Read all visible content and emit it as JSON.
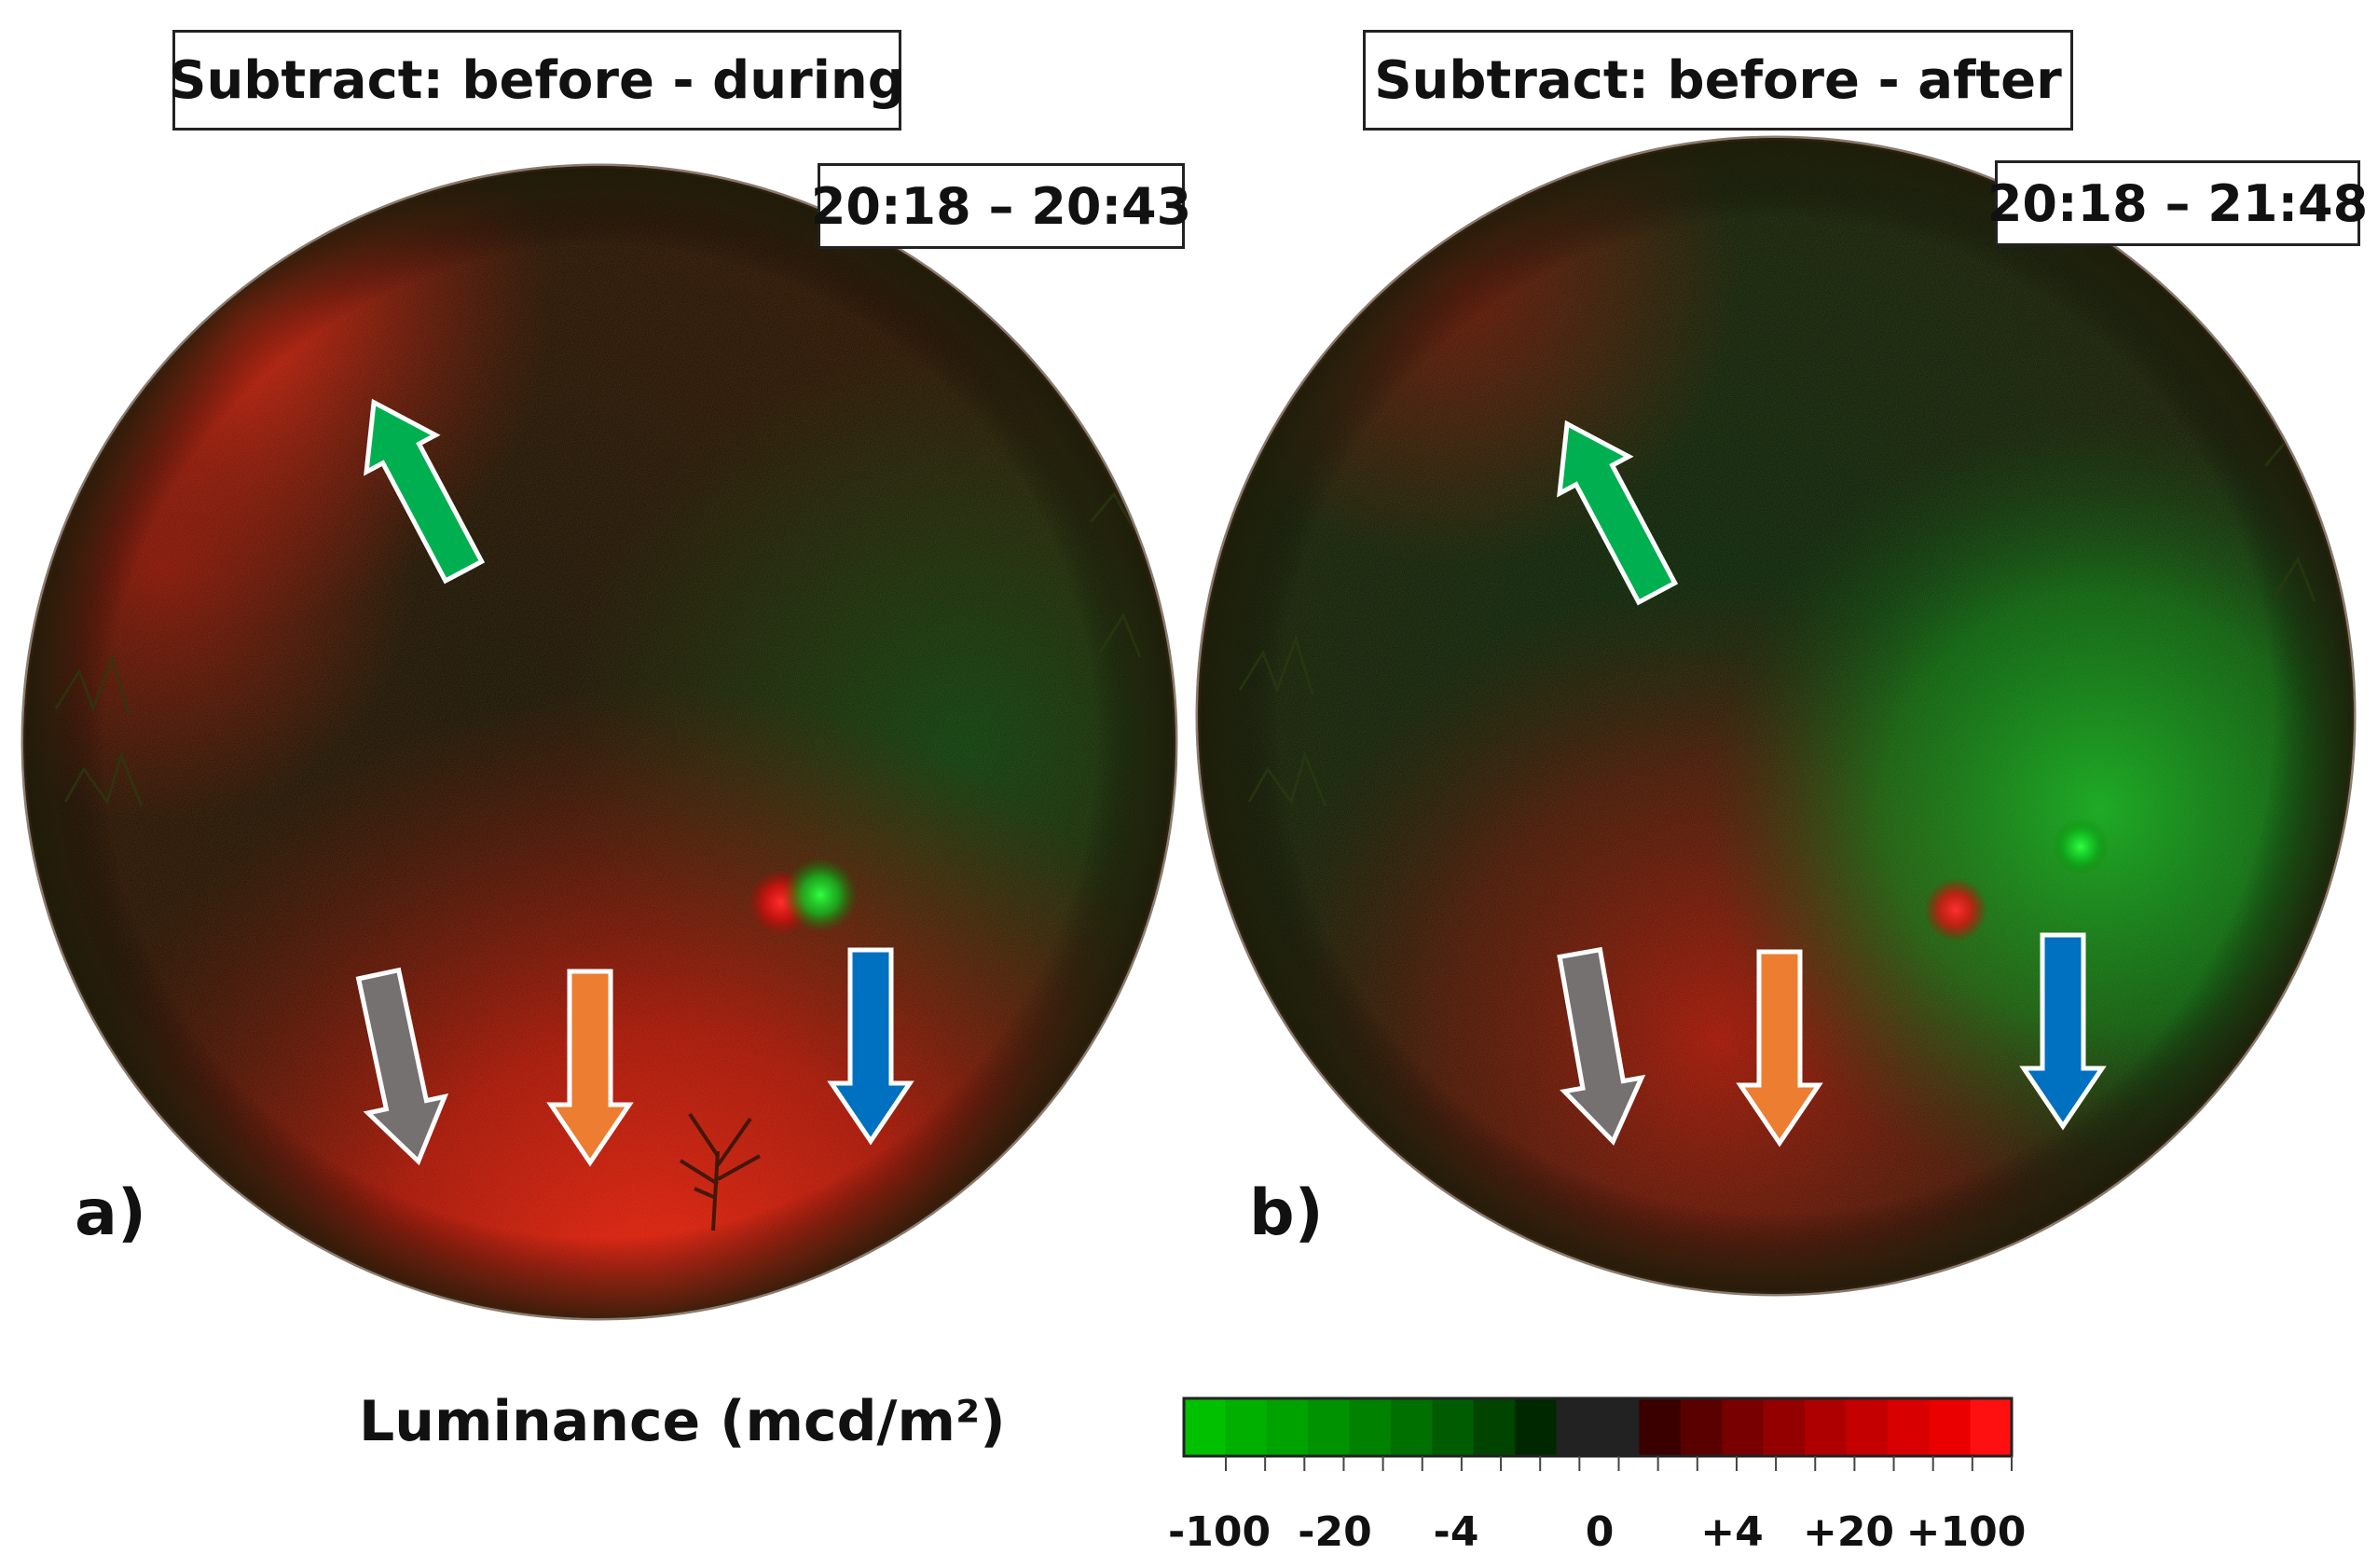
{
  "panels": [
    {
      "id": "a",
      "title": "Subtract: before - during",
      "time_range": "20:18 – 20:43",
      "letter": "a)"
    },
    {
      "id": "b",
      "title": "Subtract: before - after",
      "time_range": "20:18 – 21:48",
      "letter": "b)"
    }
  ],
  "arrow_colors": {
    "green": "#00b050",
    "gray": "#767171",
    "orange": "#ed7d31",
    "blue": "#0070c0"
  },
  "legend": {
    "title": "Luminance (mcd/m²)",
    "ticks": [
      "-100",
      "-20",
      "-4",
      "0",
      "+4",
      "+20",
      "+100"
    ],
    "colors": [
      "#00c000",
      "#00b000",
      "#00a200",
      "#009200",
      "#008200",
      "#007000",
      "#005c00",
      "#004400",
      "#002800",
      "#222222",
      "#222222",
      "#3a0000",
      "#5a0000",
      "#780000",
      "#940000",
      "#ae0000",
      "#c40000",
      "#d80000",
      "#ea0000",
      "#ff1010"
    ]
  }
}
